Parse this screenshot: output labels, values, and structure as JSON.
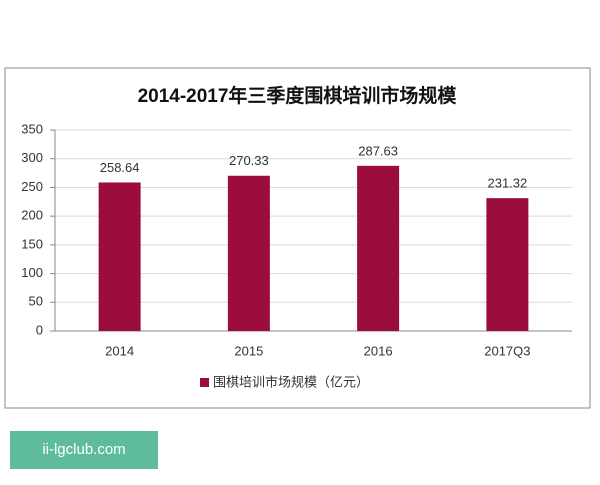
{
  "chart_data": {
    "type": "bar",
    "title": "2014-2017年三季度围棋培训市场规模",
    "categories": [
      "2014",
      "2015",
      "2016",
      "2017Q3"
    ],
    "series": [
      {
        "name": "围棋培训市场规模（亿元）",
        "color": "#9b0d3c",
        "values": [
          258.64,
          270.33,
          287.63,
          231.32
        ]
      }
    ],
    "ylim": [
      0,
      350
    ],
    "yticks": [
      0,
      50,
      100,
      150,
      200,
      250,
      300,
      350
    ],
    "grid": true,
    "legend": "bottom"
  },
  "watermark": "ii-lgclub.com"
}
